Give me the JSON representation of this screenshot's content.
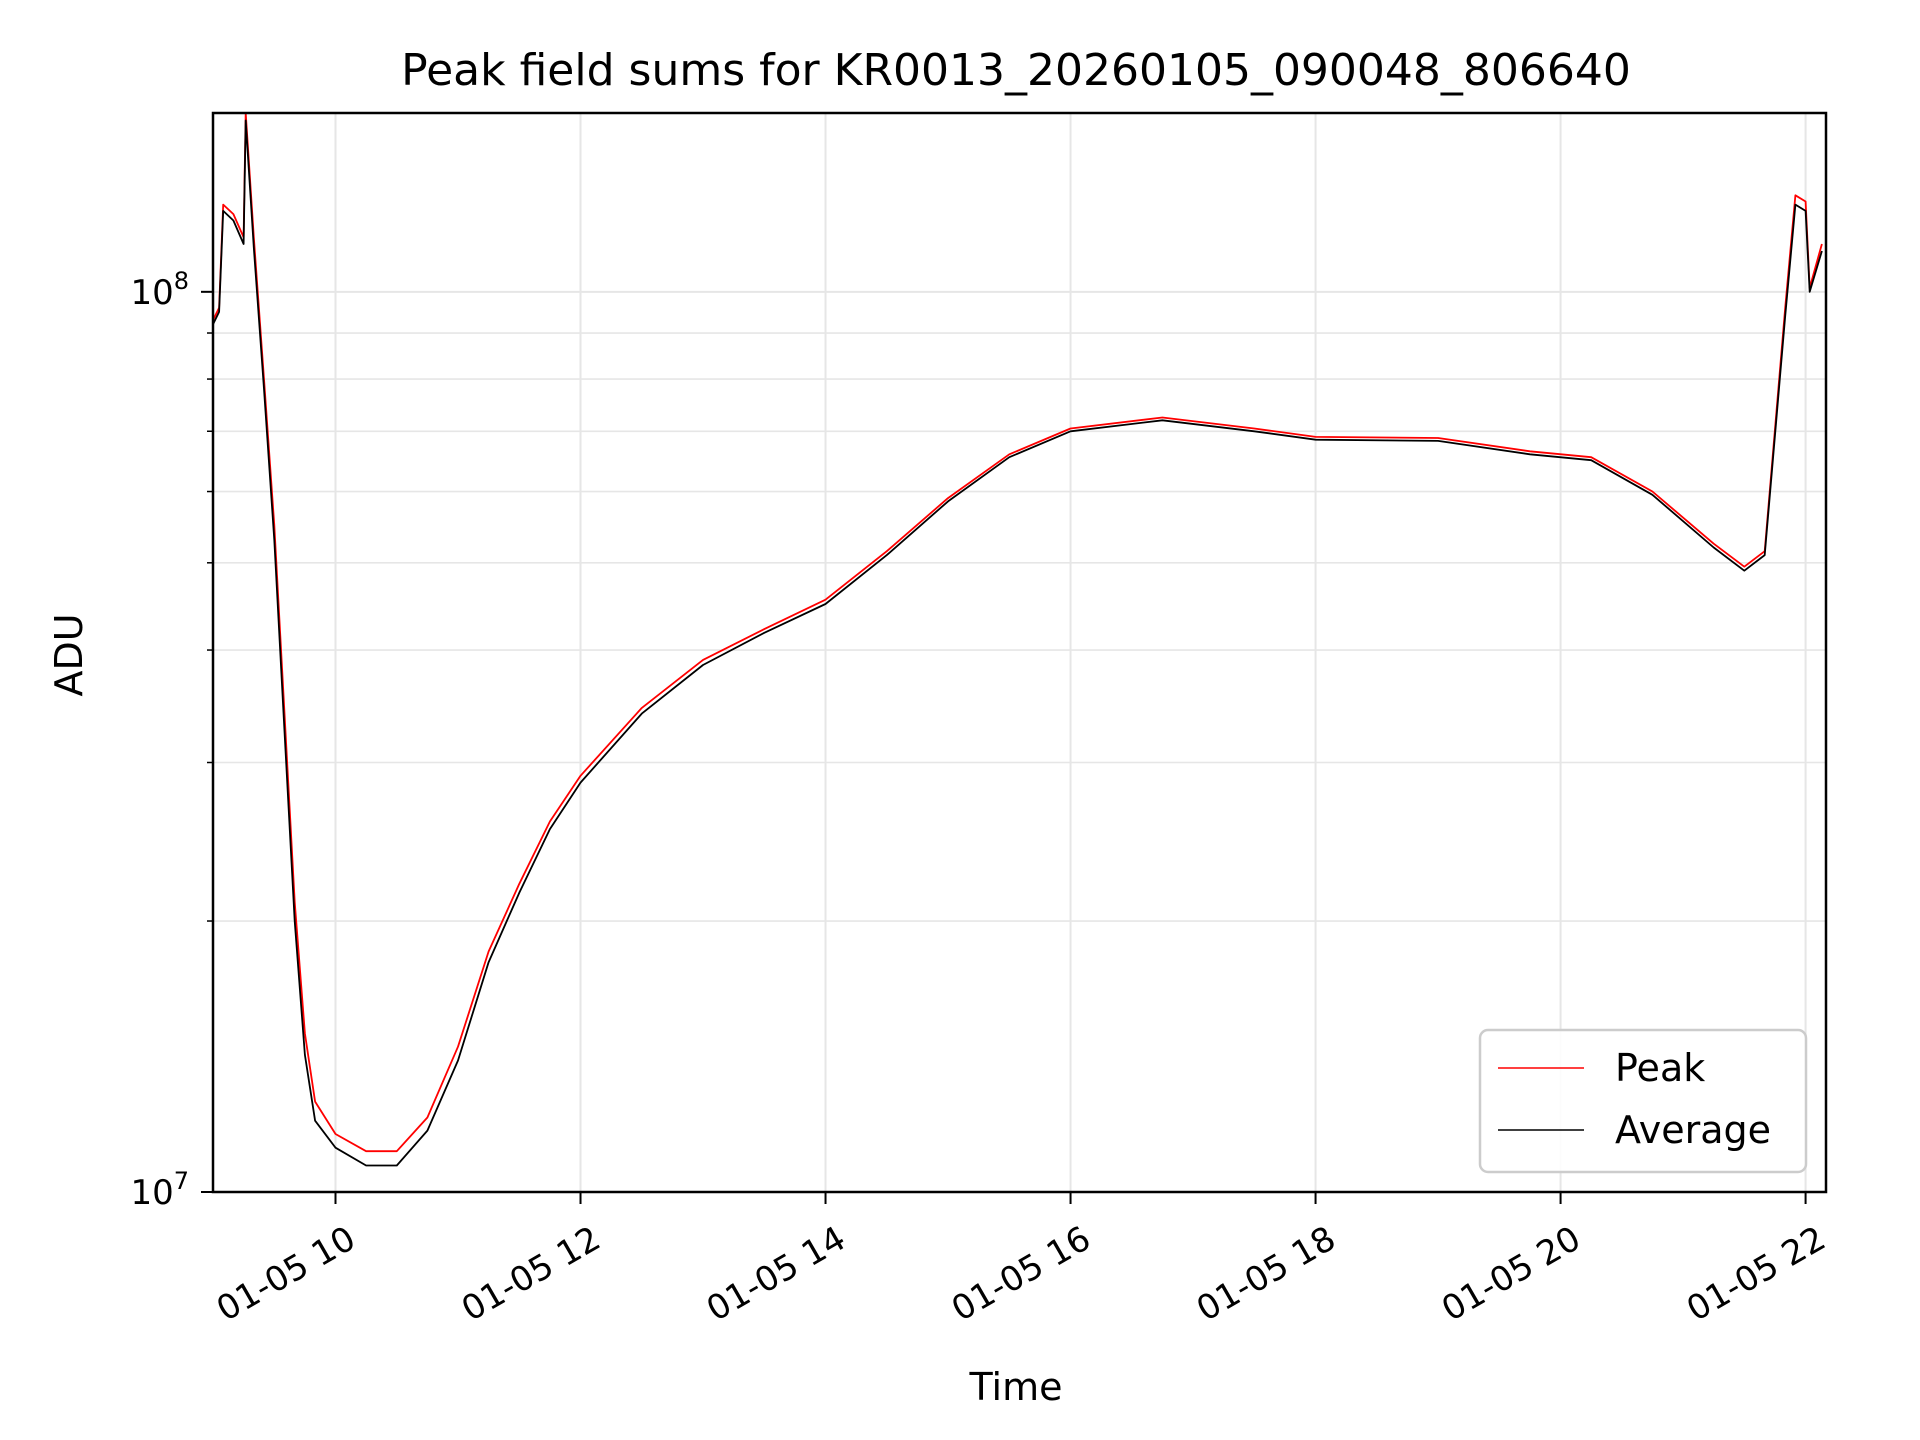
{
  "chart_data": {
    "type": "line",
    "title": "Peak field sums for KR0013_20260105_090048_806640",
    "xlabel": "Time",
    "ylabel": "ADU",
    "y_scale": "log",
    "xlim": [
      "2026-01-05 09:00",
      "2026-01-05 22:10"
    ],
    "ylim": [
      10000000,
      158000000
    ],
    "x_ticks": [
      "01-05 10",
      "01-05 12",
      "01-05 14",
      "01-05 16",
      "01-05 18",
      "01-05 20",
      "01-05 22"
    ],
    "x_tick_values": [
      "2026-01-05 10:00",
      "2026-01-05 12:00",
      "2026-01-05 14:00",
      "2026-01-05 16:00",
      "2026-01-05 18:00",
      "2026-01-05 20:00",
      "2026-01-05 22:00"
    ],
    "y_ticks": [
      {
        "base": "10",
        "exp": "7",
        "value": 10000000
      },
      {
        "base": "10",
        "exp": "8",
        "value": 100000000
      }
    ],
    "grid": true,
    "legend_position": "lower-right",
    "series": [
      {
        "name": "Peak",
        "color": "#ff0000",
        "points": [
          [
            "2026-01-05 09:00",
            93000000
          ],
          [
            "2026-01-05 09:03",
            96000000
          ],
          [
            "2026-01-05 09:05",
            125000000
          ],
          [
            "2026-01-05 09:10",
            122000000
          ],
          [
            "2026-01-05 09:15",
            115000000
          ],
          [
            "2026-01-05 09:16",
            158000000
          ],
          [
            "2026-01-05 09:20",
            115000000
          ],
          [
            "2026-01-05 09:25",
            80000000
          ],
          [
            "2026-01-05 09:30",
            55000000
          ],
          [
            "2026-01-05 09:35",
            34000000
          ],
          [
            "2026-01-05 09:40",
            21000000
          ],
          [
            "2026-01-05 09:45",
            15000000
          ],
          [
            "2026-01-05 09:50",
            12600000
          ],
          [
            "2026-01-05 10:00",
            11600000
          ],
          [
            "2026-01-05 10:15",
            11100000
          ],
          [
            "2026-01-05 10:30",
            11100000
          ],
          [
            "2026-01-05 10:45",
            12100000
          ],
          [
            "2026-01-05 11:00",
            14500000
          ],
          [
            "2026-01-05 11:15",
            18500000
          ],
          [
            "2026-01-05 11:30",
            22000000
          ],
          [
            "2026-01-05 11:45",
            25800000
          ],
          [
            "2026-01-05 12:00",
            29000000
          ],
          [
            "2026-01-05 12:30",
            34500000
          ],
          [
            "2026-01-05 13:00",
            39000000
          ],
          [
            "2026-01-05 13:30",
            42200000
          ],
          [
            "2026-01-05 14:00",
            45500000
          ],
          [
            "2026-01-05 14:30",
            51500000
          ],
          [
            "2026-01-05 15:00",
            59000000
          ],
          [
            "2026-01-05 15:30",
            66000000
          ],
          [
            "2026-01-05 16:00",
            70500000
          ],
          [
            "2026-01-05 16:45",
            72500000
          ],
          [
            "2026-01-05 17:30",
            70500000
          ],
          [
            "2026-01-05 18:00",
            69000000
          ],
          [
            "2026-01-05 19:00",
            68800000
          ],
          [
            "2026-01-05 19:45",
            66500000
          ],
          [
            "2026-01-05 20:15",
            65500000
          ],
          [
            "2026-01-05 20:45",
            60000000
          ],
          [
            "2026-01-05 21:15",
            52500000
          ],
          [
            "2026-01-05 21:30",
            49500000
          ],
          [
            "2026-01-05 21:40",
            51500000
          ],
          [
            "2026-01-05 21:50",
            96000000
          ],
          [
            "2026-01-05 21:55",
            128000000
          ],
          [
            "2026-01-05 22:00",
            126000000
          ],
          [
            "2026-01-05 22:02",
            101000000
          ],
          [
            "2026-01-05 22:08",
            113000000
          ]
        ]
      },
      {
        "name": "Average",
        "color": "#000000",
        "points": [
          [
            "2026-01-05 09:00",
            92000000
          ],
          [
            "2026-01-05 09:03",
            95000000
          ],
          [
            "2026-01-05 09:05",
            123000000
          ],
          [
            "2026-01-05 09:10",
            120000000
          ],
          [
            "2026-01-05 09:15",
            113000000
          ],
          [
            "2026-01-05 09:16",
            155000000
          ],
          [
            "2026-01-05 09:20",
            112000000
          ],
          [
            "2026-01-05 09:25",
            78000000
          ],
          [
            "2026-01-05 09:30",
            53000000
          ],
          [
            "2026-01-05 09:35",
            32500000
          ],
          [
            "2026-01-05 09:40",
            20000000
          ],
          [
            "2026-01-05 09:45",
            14200000
          ],
          [
            "2026-01-05 09:50",
            12000000
          ],
          [
            "2026-01-05 10:00",
            11200000
          ],
          [
            "2026-01-05 10:15",
            10700000
          ],
          [
            "2026-01-05 10:30",
            10700000
          ],
          [
            "2026-01-05 10:45",
            11700000
          ],
          [
            "2026-01-05 11:00",
            14000000
          ],
          [
            "2026-01-05 11:15",
            18000000
          ],
          [
            "2026-01-05 11:30",
            21500000
          ],
          [
            "2026-01-05 11:45",
            25300000
          ],
          [
            "2026-01-05 12:00",
            28500000
          ],
          [
            "2026-01-05 12:30",
            34000000
          ],
          [
            "2026-01-05 13:00",
            38500000
          ],
          [
            "2026-01-05 13:30",
            41800000
          ],
          [
            "2026-01-05 14:00",
            45000000
          ],
          [
            "2026-01-05 14:30",
            51000000
          ],
          [
            "2026-01-05 15:00",
            58500000
          ],
          [
            "2026-01-05 15:30",
            65500000
          ],
          [
            "2026-01-05 16:00",
            70000000
          ],
          [
            "2026-01-05 16:45",
            72000000
          ],
          [
            "2026-01-05 17:30",
            70000000
          ],
          [
            "2026-01-05 18:00",
            68500000
          ],
          [
            "2026-01-05 19:00",
            68300000
          ],
          [
            "2026-01-05 19:45",
            66000000
          ],
          [
            "2026-01-05 20:15",
            65000000
          ],
          [
            "2026-01-05 20:45",
            59500000
          ],
          [
            "2026-01-05 21:15",
            52000000
          ],
          [
            "2026-01-05 21:30",
            49000000
          ],
          [
            "2026-01-05 21:40",
            51000000
          ],
          [
            "2026-01-05 21:50",
            94000000
          ],
          [
            "2026-01-05 21:55",
            125000000
          ],
          [
            "2026-01-05 22:00",
            123000000
          ],
          [
            "2026-01-05 22:02",
            100000000
          ],
          [
            "2026-01-05 22:08",
            111000000
          ]
        ]
      }
    ]
  }
}
